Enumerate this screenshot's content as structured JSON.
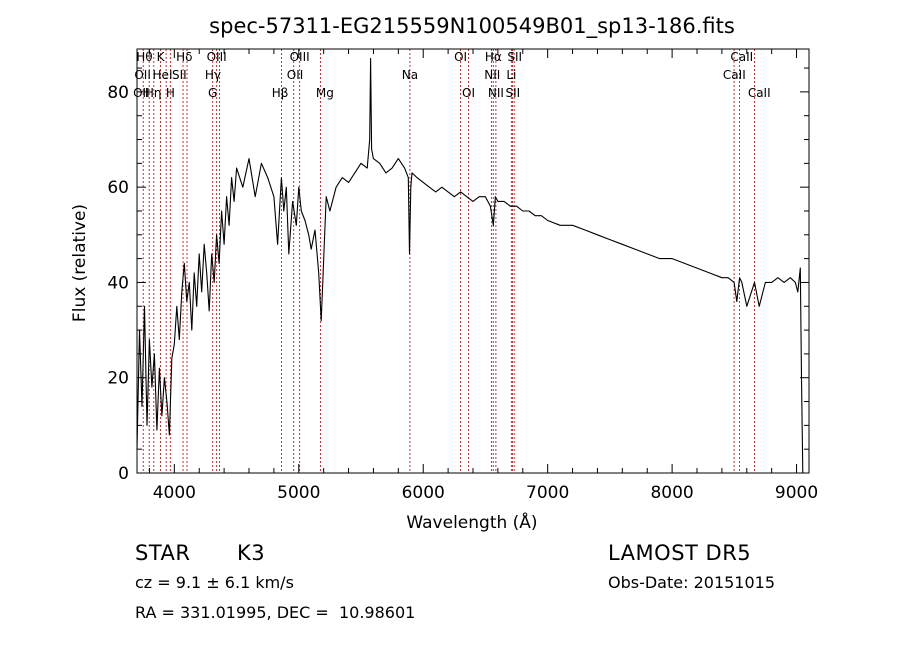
{
  "chart_data": {
    "type": "line",
    "title": "spec-57311-EG215559N100549B01_sp13-186.fits",
    "xlabel": "Wavelength (Å)",
    "ylabel": "Flux (relative)",
    "xlim": [
      3700,
      9100
    ],
    "ylim": [
      0,
      89
    ],
    "xticks": [
      4000,
      5000,
      6000,
      7000,
      8000,
      9000
    ],
    "xtick_labels": [
      "4000",
      "5000",
      "6000",
      "7000",
      "8000",
      "9000"
    ],
    "yticks": [
      0,
      20,
      40,
      60,
      80
    ],
    "ytick_labels": [
      "0",
      "20",
      "40",
      "60",
      "80"
    ],
    "grid": false,
    "line_color": "#000000",
    "marker_line_color": "#b22222",
    "series": [
      {
        "x": [
          3700,
          3720,
          3740,
          3760,
          3780,
          3800,
          3820,
          3840,
          3860,
          3880,
          3900,
          3920,
          3940,
          3960,
          3980,
          4000,
          4020,
          4040,
          4060,
          4080,
          4100,
          4120,
          4140,
          4160,
          4180,
          4200,
          4220,
          4240,
          4260,
          4280,
          4300,
          4320,
          4340,
          4360,
          4380,
          4400,
          4420,
          4440,
          4460,
          4480,
          4500,
          4550,
          4600,
          4650,
          4700,
          4750,
          4800,
          4830,
          4860,
          4880,
          4900,
          4920,
          4950,
          4980,
          5000,
          5020,
          5050,
          5080,
          5100,
          5130,
          5160,
          5180,
          5190,
          5200,
          5220,
          5250,
          5300,
          5350,
          5400,
          5450,
          5500,
          5550,
          5570,
          5577,
          5585,
          5600,
          5650,
          5700,
          5750,
          5800,
          5850,
          5880,
          5890,
          5900,
          5910,
          5950,
          6000,
          6050,
          6100,
          6150,
          6200,
          6250,
          6300,
          6350,
          6400,
          6450,
          6500,
          6540,
          6563,
          6580,
          6600,
          6650,
          6700,
          6750,
          6800,
          6850,
          6900,
          6950,
          7000,
          7100,
          7200,
          7300,
          7400,
          7500,
          7600,
          7700,
          7800,
          7900,
          8000,
          8100,
          8200,
          8300,
          8400,
          8450,
          8498,
          8520,
          8542,
          8560,
          8600,
          8662,
          8700,
          8750,
          8800,
          8850,
          8900,
          8950,
          8990,
          9010,
          9030,
          9040,
          9050
        ],
        "y": [
          5,
          30,
          14,
          35,
          10,
          28,
          18,
          25,
          9,
          22,
          12,
          20,
          15,
          8,
          24,
          27,
          35,
          28,
          38,
          44,
          36,
          40,
          30,
          42,
          35,
          46,
          38,
          48,
          42,
          34,
          46,
          40,
          50,
          44,
          55,
          48,
          58,
          52,
          62,
          57,
          64,
          60,
          66,
          58,
          65,
          62,
          58,
          48,
          62,
          55,
          60,
          46,
          57,
          52,
          60,
          55,
          53,
          50,
          47,
          51,
          42,
          32,
          38,
          45,
          58,
          55,
          60,
          62,
          61,
          63,
          65,
          64,
          70,
          87,
          68,
          66,
          65,
          63,
          64,
          66,
          64,
          62,
          46,
          60,
          63,
          62,
          61,
          60,
          59,
          60,
          59,
          58,
          59,
          58,
          57,
          58,
          58,
          56,
          52,
          58,
          57,
          57,
          56,
          56,
          55,
          55,
          54,
          54,
          53,
          52,
          52,
          51,
          50,
          49,
          48,
          47,
          46,
          45,
          45,
          44,
          43,
          42,
          41,
          41,
          40,
          36,
          41,
          40,
          35,
          40,
          35,
          40,
          40,
          41,
          40,
          41,
          40,
          38,
          43,
          20,
          0
        ]
      }
    ],
    "lines": [
      {
        "x": 3750,
        "labels": [
          "Hθ",
          "OII",
          "Hη"
        ]
      },
      {
        "x": 3798,
        "labels": [
          "Hθ",
          "OII",
          "Hη"
        ]
      },
      {
        "x": 3835,
        "labels": [
          "Hθ",
          "OII",
          "Hη"
        ]
      },
      {
        "x": 3889,
        "labels": [
          "K",
          "HeI",
          "H"
        ]
      },
      {
        "x": 3934,
        "labels": [
          "K",
          "HeI",
          "H"
        ]
      },
      {
        "x": 3968,
        "labels": [
          "K",
          "HeI",
          "H"
        ]
      },
      {
        "x": 4070,
        "labels": [
          "Hδ",
          "SII"
        ]
      },
      {
        "x": 4102,
        "labels": [
          "Hδ",
          "SII"
        ]
      },
      {
        "x": 4308,
        "labels": [
          "OIII",
          "Hγ",
          "G"
        ]
      },
      {
        "x": 4340,
        "labels": [
          "OIII",
          "Hγ",
          "G"
        ]
      },
      {
        "x": 4363,
        "labels": [
          "OIII",
          "Hγ",
          "G"
        ]
      },
      {
        "x": 4861,
        "labels": [
          "Hβ"
        ]
      },
      {
        "x": 4959,
        "labels": [
          "OIII",
          "OII"
        ]
      },
      {
        "x": 5007,
        "labels": [
          "OIII",
          "OII"
        ]
      },
      {
        "x": 5175,
        "labels": [
          "Mg"
        ]
      },
      {
        "x": 5893,
        "labels": [
          "Na"
        ]
      },
      {
        "x": 6300,
        "labels": [
          "OI"
        ]
      },
      {
        "x": 6364,
        "labels": [
          "OI"
        ]
      },
      {
        "x": 6548,
        "labels": [
          "Hα",
          "NII"
        ]
      },
      {
        "x": 6563,
        "labels": [
          "Hα",
          "NII"
        ]
      },
      {
        "x": 6584,
        "labels": [
          "Hα",
          "NII"
        ]
      },
      {
        "x": 6708,
        "labels": [
          "SII",
          "Li",
          "SII"
        ]
      },
      {
        "x": 6717,
        "labels": [
          "SII",
          "Li",
          "SII"
        ]
      },
      {
        "x": 6731,
        "labels": [
          "SII",
          "Li",
          "SII"
        ]
      },
      {
        "x": 8498,
        "labels": [
          "CaII"
        ]
      },
      {
        "x": 8542,
        "labels": [
          "CaII"
        ]
      },
      {
        "x": 8662,
        "labels": [
          "CaII"
        ]
      }
    ],
    "line_labels": [
      {
        "text": "Hθ",
        "x": 3760,
        "row": 0
      },
      {
        "text": "K",
        "x": 3889,
        "row": 0
      },
      {
        "text": "Hδ",
        "x": 4080,
        "row": 0
      },
      {
        "text": "OIII",
        "x": 4340,
        "row": 0
      },
      {
        "text": "OIII",
        "x": 5007,
        "row": 0
      },
      {
        "text": "OI",
        "x": 6300,
        "row": 0
      },
      {
        "text": "Hα",
        "x": 6563,
        "row": 0
      },
      {
        "text": "SII",
        "x": 6735,
        "row": 0
      },
      {
        "text": "CaII",
        "x": 8560,
        "row": 0
      },
      {
        "text": "OII",
        "x": 3745,
        "row": 1
      },
      {
        "text": "HeI",
        "x": 3905,
        "row": 1
      },
      {
        "text": "SII",
        "x": 4040,
        "row": 1
      },
      {
        "text": "Hγ",
        "x": 4310,
        "row": 1
      },
      {
        "text": "OII",
        "x": 4970,
        "row": 1
      },
      {
        "text": "Na",
        "x": 5893,
        "row": 1
      },
      {
        "text": "NII",
        "x": 6555,
        "row": 1
      },
      {
        "text": "Li",
        "x": 6708,
        "row": 1
      },
      {
        "text": "CaII",
        "x": 8500,
        "row": 1
      },
      {
        "text": "OII",
        "x": 3735,
        "row": 2
      },
      {
        "text": "Hη",
        "x": 3830,
        "row": 2
      },
      {
        "text": "H",
        "x": 3968,
        "row": 2
      },
      {
        "text": "G",
        "x": 4308,
        "row": 2
      },
      {
        "text": "Hβ",
        "x": 4850,
        "row": 2
      },
      {
        "text": "Mg",
        "x": 5210,
        "row": 2
      },
      {
        "text": "OI",
        "x": 6364,
        "row": 2
      },
      {
        "text": "NII",
        "x": 6584,
        "row": 2
      },
      {
        "text": "SII",
        "x": 6720,
        "row": 2
      },
      {
        "text": "CaII",
        "x": 8700,
        "row": 2
      }
    ]
  },
  "info": {
    "object_type": "STAR",
    "subclass": "K3",
    "cz": "cz = 9.1 ± 6.1 km/s",
    "radec": "RA = 331.01995, DEC =  10.98601",
    "survey": "LAMOST DR5",
    "obs_date": "Obs-Date: 20151015"
  }
}
